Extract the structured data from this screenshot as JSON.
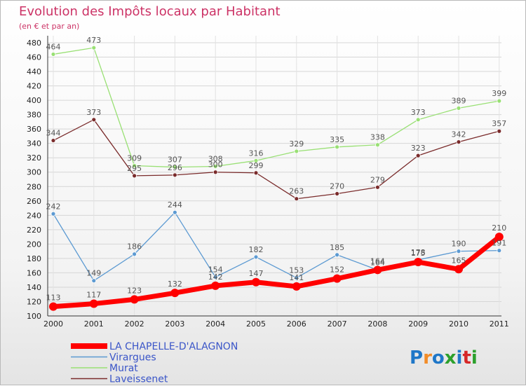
{
  "chart_data": {
    "type": "line",
    "title": "Evolution des Impôts locaux par Habitant",
    "subtitle": "(en € et par an)",
    "xlabel": "",
    "ylabel": "",
    "ylim": [
      100,
      480
    ],
    "yticks": [
      100,
      120,
      140,
      160,
      180,
      200,
      220,
      240,
      260,
      280,
      300,
      320,
      340,
      360,
      380,
      400,
      420,
      440,
      460,
      480
    ],
    "grid": true,
    "legend_position": "bottom-left",
    "x": [
      "2000",
      "2001",
      "2002",
      "2003",
      "2004",
      "2005",
      "2006",
      "2007",
      "2008",
      "2009",
      "2010",
      "2011"
    ],
    "series": [
      {
        "name": "LA CHAPELLE-D'ALAGNON",
        "color": "#ff0000",
        "values": [
          113,
          117,
          123,
          132,
          142,
          147,
          141,
          152,
          164,
          175,
          165,
          210
        ]
      },
      {
        "name": "Virargues",
        "color": "#5c9ad2",
        "values": [
          242,
          149,
          186,
          244,
          154,
          182,
          153,
          185,
          164,
          178,
          190,
          191
        ]
      },
      {
        "name": "Murat",
        "color": "#99e074",
        "values": [
          464,
          473,
          309,
          307,
          308,
          316,
          329,
          335,
          338,
          373,
          389,
          399
        ]
      },
      {
        "name": "Laveissenet",
        "color": "#7a2b2b",
        "values": [
          344,
          373,
          295,
          296,
          300,
          299,
          263,
          270,
          279,
          323,
          342,
          357
        ]
      }
    ]
  },
  "branding": {
    "logo_text": "Proxiti",
    "logo_colors": [
      "#1f77c8",
      "#f28c28",
      "#1f77c8",
      "#2ca02c",
      "#1f77c8",
      "#d62728",
      "#2ca02c"
    ]
  }
}
